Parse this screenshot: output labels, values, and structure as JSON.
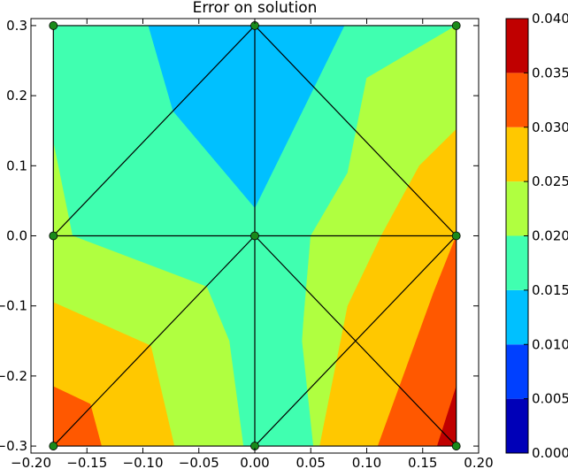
{
  "chart_data": {
    "type": "contour",
    "title": "Error on solution",
    "xlabel": "",
    "ylabel": "",
    "xlim": [
      -0.2,
      0.2
    ],
    "ylim": [
      -0.31,
      0.31
    ],
    "x_ticks": [
      "-0.20",
      "-0.15",
      "-0.10",
      "-0.05",
      "0.00",
      "0.05",
      "0.10",
      "0.15",
      "0.20"
    ],
    "x_tick_values": [
      -0.2,
      -0.15,
      -0.1,
      -0.05,
      0.0,
      0.05,
      0.1,
      0.15,
      0.2
    ],
    "y_ticks": [
      "0.3",
      "0.2",
      "0.1",
      "0.0",
      "-0.1",
      "-0.2",
      "-0.3"
    ],
    "y_tick_values": [
      0.3,
      0.2,
      0.1,
      0.0,
      -0.1,
      -0.2,
      -0.3
    ],
    "colorbar": {
      "levels": [
        "0.000",
        "0.005",
        "0.010",
        "0.015",
        "0.020",
        "0.025",
        "0.030",
        "0.035",
        "0.040"
      ],
      "level_values": [
        0.0,
        0.005,
        0.01,
        0.015,
        0.02,
        0.025,
        0.03,
        0.035,
        0.04
      ],
      "colors": [
        "#0000b8",
        "#0040ff",
        "#00c0ff",
        "#40ffb0",
        "#b0ff40",
        "#ffc800",
        "#ff5800",
        "#c00000"
      ]
    },
    "mesh_nodes": [
      [
        -0.18,
        0.3
      ],
      [
        0.0,
        0.3
      ],
      [
        0.18,
        0.3
      ],
      [
        -0.18,
        0.0
      ],
      [
        0.0,
        0.0
      ],
      [
        0.18,
        0.0
      ],
      [
        -0.18,
        -0.3
      ],
      [
        0.0,
        -0.3
      ],
      [
        0.18,
        -0.3
      ]
    ],
    "mesh_edges": [
      [
        0,
        1
      ],
      [
        1,
        2
      ],
      [
        3,
        4
      ],
      [
        4,
        5
      ],
      [
        6,
        7
      ],
      [
        7,
        8
      ],
      [
        0,
        3
      ],
      [
        3,
        6
      ],
      [
        1,
        4
      ],
      [
        4,
        7
      ],
      [
        2,
        5
      ],
      [
        5,
        8
      ],
      [
        3,
        1
      ],
      [
        1,
        5
      ],
      [
        6,
        4
      ],
      [
        4,
        8
      ],
      [
        7,
        5
      ]
    ],
    "node_color": "#1a8a1a",
    "regions": [
      {
        "level": 3,
        "points": [
          [
            -0.18,
            0.3
          ],
          [
            0.18,
            0.3
          ],
          [
            0.18,
            -0.3
          ],
          [
            -0.18,
            -0.3
          ]
        ]
      },
      {
        "level": 2,
        "points": [
          [
            -0.095,
            0.3
          ],
          [
            0.08,
            0.3
          ],
          [
            0.0,
            0.04
          ],
          [
            -0.073,
            0.178
          ]
        ]
      },
      {
        "level": 4,
        "points": [
          [
            0.18,
            0.3
          ],
          [
            0.18,
            0.152
          ],
          [
            0.147,
            0.1
          ],
          [
            0.113,
            0.0
          ],
          [
            0.083,
            -0.1
          ],
          [
            0.058,
            -0.3
          ],
          [
            0.18,
            -0.3
          ]
        ]
      },
      {
        "level": 4,
        "points": [
          [
            0.18,
            0.3
          ],
          [
            0.1,
            0.225
          ],
          [
            0.083,
            0.09
          ],
          [
            0.05,
            0.0
          ],
          [
            0.042,
            -0.15
          ],
          [
            0.052,
            -0.3
          ],
          [
            0.18,
            -0.3
          ],
          [
            0.18,
            0.152
          ]
        ]
      },
      {
        "level": 4,
        "points": [
          [
            -0.18,
            0.133
          ],
          [
            -0.163,
            0.0
          ],
          [
            -0.0425,
            -0.073
          ],
          [
            -0.0225,
            -0.15
          ],
          [
            -0.01,
            -0.3
          ],
          [
            -0.18,
            -0.3
          ]
        ]
      },
      {
        "level": 3,
        "points": [
          [
            0.0,
            -0.3
          ],
          [
            -0.01,
            -0.3
          ],
          [
            -0.0225,
            -0.15
          ],
          [
            -0.0425,
            -0.073
          ],
          [
            0.0,
            0.0
          ],
          [
            0.048,
            0.0
          ],
          [
            0.042,
            -0.15
          ],
          [
            0.052,
            -0.3
          ]
        ]
      },
      {
        "level": 5,
        "points": [
          [
            0.18,
            0.152
          ],
          [
            0.18,
            -0.3
          ],
          [
            0.058,
            -0.3
          ],
          [
            0.083,
            -0.1
          ],
          [
            0.113,
            0.0
          ],
          [
            0.147,
            0.1
          ]
        ]
      },
      {
        "level": 5,
        "points": [
          [
            -0.18,
            -0.095
          ],
          [
            -0.093,
            -0.157
          ],
          [
            -0.072,
            -0.3
          ],
          [
            -0.18,
            -0.3
          ]
        ]
      },
      {
        "level": 6,
        "points": [
          [
            0.18,
            0.0
          ],
          [
            0.18,
            -0.3
          ],
          [
            0.11,
            -0.3
          ],
          [
            0.16,
            -0.08
          ]
        ]
      },
      {
        "level": 6,
        "points": [
          [
            -0.18,
            -0.215
          ],
          [
            -0.147,
            -0.24
          ],
          [
            -0.137,
            -0.3
          ],
          [
            -0.18,
            -0.3
          ]
        ]
      },
      {
        "level": 7,
        "points": [
          [
            0.18,
            -0.215
          ],
          [
            0.18,
            -0.3
          ],
          [
            0.163,
            -0.3
          ],
          [
            0.175,
            -0.24
          ]
        ]
      }
    ]
  }
}
